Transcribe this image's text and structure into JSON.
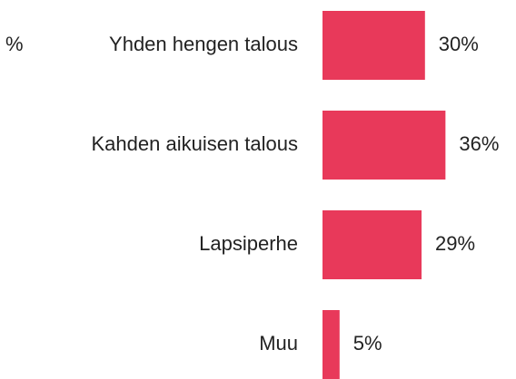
{
  "chart_data": {
    "type": "bar",
    "orientation": "horizontal",
    "annotation": "%",
    "categories": [
      "Yhden hengen talous",
      "Kahden aikuisen talous",
      "Lapsiperhe",
      "Muu"
    ],
    "values": [
      30,
      36,
      29,
      5
    ],
    "value_labels": [
      "30%",
      "36%",
      "29%",
      "5%"
    ],
    "color": "#e8395a"
  }
}
